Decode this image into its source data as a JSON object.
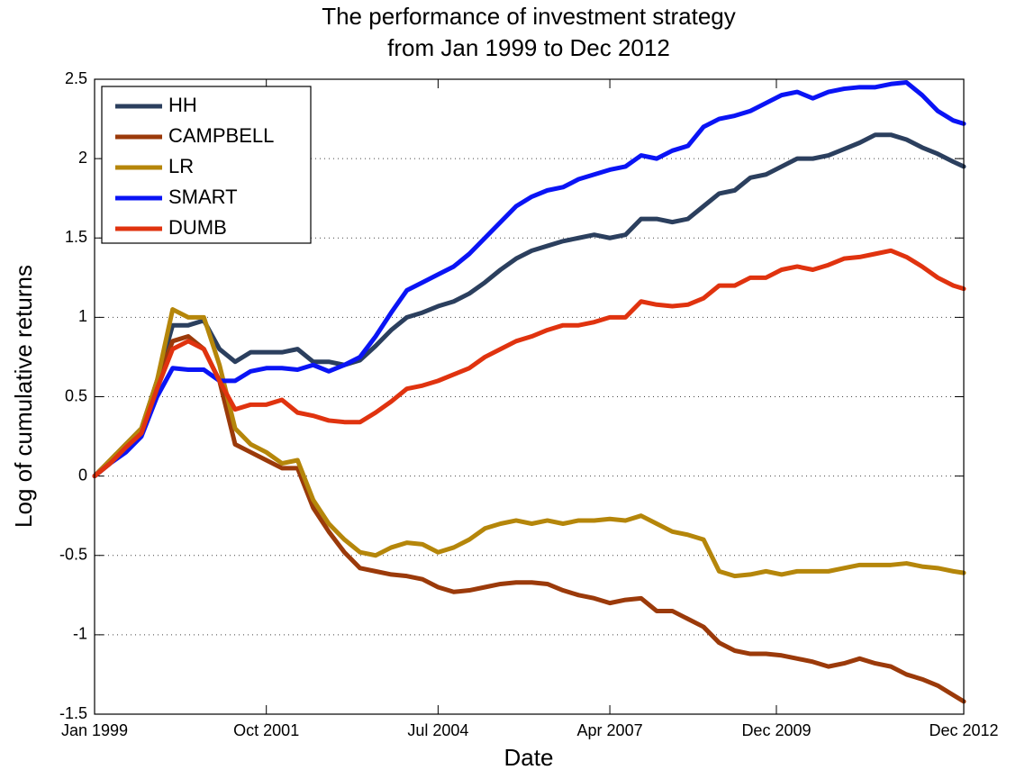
{
  "chart_data": {
    "type": "line",
    "title": "The performance of investment strategy",
    "subtitle": "from Jan 1999 to Dec 2012",
    "xlabel": "Date",
    "ylabel": "Log of cumulative returns",
    "x": [
      "1999-01",
      "1999-04",
      "1999-07",
      "1999-10",
      "2000-01",
      "2000-04",
      "2000-07",
      "2000-10",
      "2001-01",
      "2001-04",
      "2001-07",
      "2001-10",
      "2002-01",
      "2002-04",
      "2002-07",
      "2002-10",
      "2003-01",
      "2003-04",
      "2003-07",
      "2003-10",
      "2004-01",
      "2004-04",
      "2004-07",
      "2004-10",
      "2005-01",
      "2005-04",
      "2005-07",
      "2005-10",
      "2006-01",
      "2006-04",
      "2006-07",
      "2006-10",
      "2007-01",
      "2007-04",
      "2007-07",
      "2007-10",
      "2008-01",
      "2008-04",
      "2008-07",
      "2008-10",
      "2009-01",
      "2009-04",
      "2009-07",
      "2009-10",
      "2010-01",
      "2010-04",
      "2010-07",
      "2010-10",
      "2011-01",
      "2011-04",
      "2011-07",
      "2011-10",
      "2012-01",
      "2012-04",
      "2012-07",
      "2012-10",
      "2012-12"
    ],
    "xlim": [
      "1999-01",
      "2012-12"
    ],
    "xticks": [
      {
        "value": "1999-01",
        "label": "Jan 1999"
      },
      {
        "value": "2001-10",
        "label": "Oct 2001"
      },
      {
        "value": "2004-07",
        "label": "Jul 2004"
      },
      {
        "value": "2007-04",
        "label": "Apr 2007"
      },
      {
        "value": "2009-12",
        "label": "Dec 2009"
      },
      {
        "value": "2012-12",
        "label": "Dec 2012"
      }
    ],
    "ylim": [
      -1.5,
      2.5
    ],
    "yticks": [
      -1.5,
      -1,
      -0.5,
      0,
      0.5,
      1,
      1.5,
      2,
      2.5
    ],
    "ygrid": true,
    "legend": "upper-left",
    "series": [
      {
        "name": "HH",
        "color": "#2b3f5e",
        "values": [
          0,
          0.1,
          0.2,
          0.3,
          0.6,
          0.95,
          0.95,
          0.98,
          0.8,
          0.72,
          0.78,
          0.78,
          0.78,
          0.8,
          0.72,
          0.72,
          0.7,
          0.73,
          0.82,
          0.92,
          1.0,
          1.03,
          1.07,
          1.1,
          1.15,
          1.22,
          1.3,
          1.37,
          1.42,
          1.45,
          1.48,
          1.5,
          1.52,
          1.5,
          1.52,
          1.62,
          1.62,
          1.6,
          1.62,
          1.7,
          1.78,
          1.8,
          1.88,
          1.9,
          1.95,
          2.0,
          2.0,
          2.02,
          2.06,
          2.1,
          2.15,
          2.15,
          2.12,
          2.07,
          2.03,
          1.98,
          1.95
        ]
      },
      {
        "name": "CAMPBELL",
        "color": "#9b3a0a",
        "values": [
          0,
          0.1,
          0.2,
          0.28,
          0.6,
          0.85,
          0.88,
          0.8,
          0.6,
          0.2,
          0.15,
          0.1,
          0.05,
          0.05,
          -0.2,
          -0.35,
          -0.48,
          -0.58,
          -0.6,
          -0.62,
          -0.63,
          -0.65,
          -0.7,
          -0.73,
          -0.72,
          -0.7,
          -0.68,
          -0.67,
          -0.67,
          -0.68,
          -0.72,
          -0.75,
          -0.77,
          -0.8,
          -0.78,
          -0.77,
          -0.85,
          -0.85,
          -0.9,
          -0.95,
          -1.05,
          -1.1,
          -1.12,
          -1.12,
          -1.13,
          -1.15,
          -1.17,
          -1.2,
          -1.18,
          -1.15,
          -1.18,
          -1.2,
          -1.25,
          -1.28,
          -1.32,
          -1.38,
          -1.42
        ]
      },
      {
        "name": "LR",
        "color": "#b5860a",
        "values": [
          0,
          0.1,
          0.2,
          0.3,
          0.6,
          1.05,
          1.0,
          1.0,
          0.7,
          0.3,
          0.2,
          0.15,
          0.08,
          0.1,
          -0.15,
          -0.3,
          -0.4,
          -0.48,
          -0.5,
          -0.45,
          -0.42,
          -0.43,
          -0.48,
          -0.45,
          -0.4,
          -0.33,
          -0.3,
          -0.28,
          -0.3,
          -0.28,
          -0.3,
          -0.28,
          -0.28,
          -0.27,
          -0.28,
          -0.25,
          -0.3,
          -0.35,
          -0.37,
          -0.4,
          -0.6,
          -0.63,
          -0.62,
          -0.6,
          -0.62,
          -0.6,
          -0.6,
          -0.6,
          -0.58,
          -0.56,
          -0.56,
          -0.56,
          -0.55,
          -0.57,
          -0.58,
          -0.6,
          -0.61
        ]
      },
      {
        "name": "SMART",
        "color": "#0a14f5",
        "values": [
          0,
          0.08,
          0.15,
          0.25,
          0.5,
          0.68,
          0.67,
          0.67,
          0.6,
          0.6,
          0.66,
          0.68,
          0.68,
          0.67,
          0.7,
          0.66,
          0.7,
          0.75,
          0.88,
          1.03,
          1.17,
          1.22,
          1.27,
          1.32,
          1.4,
          1.5,
          1.6,
          1.7,
          1.76,
          1.8,
          1.82,
          1.87,
          1.9,
          1.93,
          1.95,
          2.02,
          2.0,
          2.05,
          2.08,
          2.2,
          2.25,
          2.27,
          2.3,
          2.35,
          2.4,
          2.42,
          2.38,
          2.42,
          2.44,
          2.45,
          2.45,
          2.47,
          2.48,
          2.4,
          2.3,
          2.24,
          2.22
        ]
      },
      {
        "name": "DUMB",
        "color": "#e0330f",
        "values": [
          0,
          0.08,
          0.18,
          0.27,
          0.55,
          0.8,
          0.85,
          0.8,
          0.6,
          0.42,
          0.45,
          0.45,
          0.48,
          0.4,
          0.38,
          0.35,
          0.34,
          0.34,
          0.4,
          0.47,
          0.55,
          0.57,
          0.6,
          0.64,
          0.68,
          0.75,
          0.8,
          0.85,
          0.88,
          0.92,
          0.95,
          0.95,
          0.97,
          1.0,
          1.0,
          1.1,
          1.08,
          1.07,
          1.08,
          1.12,
          1.2,
          1.2,
          1.25,
          1.25,
          1.3,
          1.32,
          1.3,
          1.33,
          1.37,
          1.38,
          1.4,
          1.42,
          1.38,
          1.32,
          1.25,
          1.2,
          1.18
        ]
      }
    ]
  }
}
